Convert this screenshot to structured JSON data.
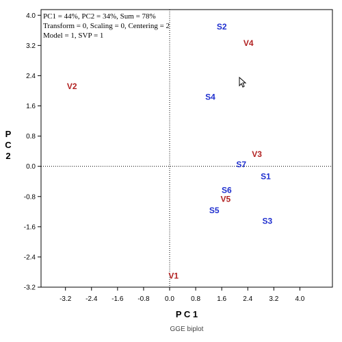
{
  "chart_data": {
    "type": "scatter",
    "xlabel": "P C 1",
    "ylabel": "P\nC\n2",
    "caption": "GGE biplot",
    "info_lines": [
      "PC1 = 44%, PC2 = 34%, Sum = 78%",
      "Transform = 0, Scaling = 0, Centering = 2",
      "Model = 1, SVP = 1"
    ],
    "xlim": [
      -3.95,
      5.0
    ],
    "ylim": [
      -3.2,
      4.15
    ],
    "x_ticks": [
      -3.2,
      -2.4,
      -1.6,
      -0.8,
      0.0,
      0.8,
      1.6,
      2.4,
      3.2,
      4.0
    ],
    "x_tick_labels": [
      "-3.2",
      "-2.4",
      "-1.6",
      "-0.8",
      "0.0",
      "0.8",
      "1.6",
      "2.4",
      "3.2",
      "4.0"
    ],
    "y_ticks": [
      4.0,
      3.2,
      2.4,
      1.6,
      0.8,
      0.0,
      -0.8,
      -1.6,
      -2.4,
      -3.2
    ],
    "y_tick_labels": [
      "4.0",
      "3.2",
      "2.4",
      "1.6",
      "0.8",
      "0.0",
      "-0.8",
      "-1.6",
      "-2.4",
      "-3.2"
    ],
    "reference_lines": {
      "x": 0,
      "y": 0,
      "style": "dotted"
    },
    "colors": {
      "varieties": "#b22222",
      "sites": "#1f2fcf"
    },
    "series": [
      {
        "group": "varieties",
        "points": [
          {
            "label": "V1",
            "x": 0.12,
            "y": -2.9
          },
          {
            "label": "V2",
            "x": -3.0,
            "y": 2.12
          },
          {
            "label": "V3",
            "x": 2.68,
            "y": 0.32
          },
          {
            "label": "V4",
            "x": 2.42,
            "y": 3.26
          },
          {
            "label": "V5",
            "x": 1.72,
            "y": -0.87
          }
        ]
      },
      {
        "group": "sites",
        "points": [
          {
            "label": "S1",
            "x": 2.95,
            "y": -0.27
          },
          {
            "label": "S2",
            "x": 1.6,
            "y": 3.7
          },
          {
            "label": "S3",
            "x": 3.0,
            "y": -1.45
          },
          {
            "label": "S4",
            "x": 1.25,
            "y": 1.84
          },
          {
            "label": "S5",
            "x": 1.37,
            "y": -1.17
          },
          {
            "label": "S6",
            "x": 1.75,
            "y": -0.63
          },
          {
            "label": "S7",
            "x": 2.2,
            "y": 0.05
          }
        ]
      }
    ]
  }
}
